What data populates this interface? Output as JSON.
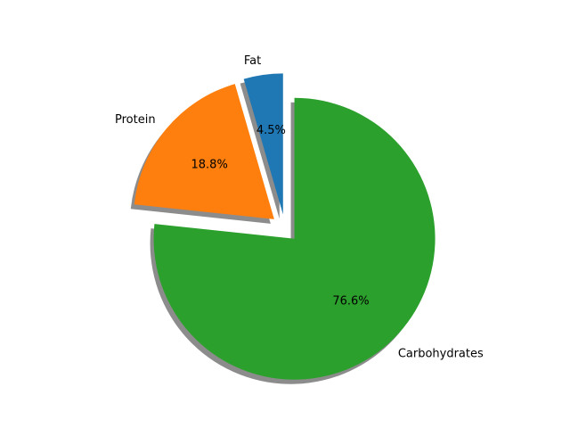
{
  "chart_data": {
    "type": "pie",
    "title": "",
    "categories": [
      "Fat",
      "Protein",
      "Carbohydrates"
    ],
    "values": [
      4.5,
      18.8,
      76.6
    ],
    "percent_labels": [
      "4.5%",
      "18.8%",
      "76.6%"
    ],
    "colors": [
      "#1f77b4",
      "#ff7f0e",
      "#2ca02c"
    ],
    "explode": [
      0.1,
      0.1,
      0.1
    ],
    "shadow": true,
    "start_angle_deg": 90,
    "direction": "counterclockwise"
  }
}
